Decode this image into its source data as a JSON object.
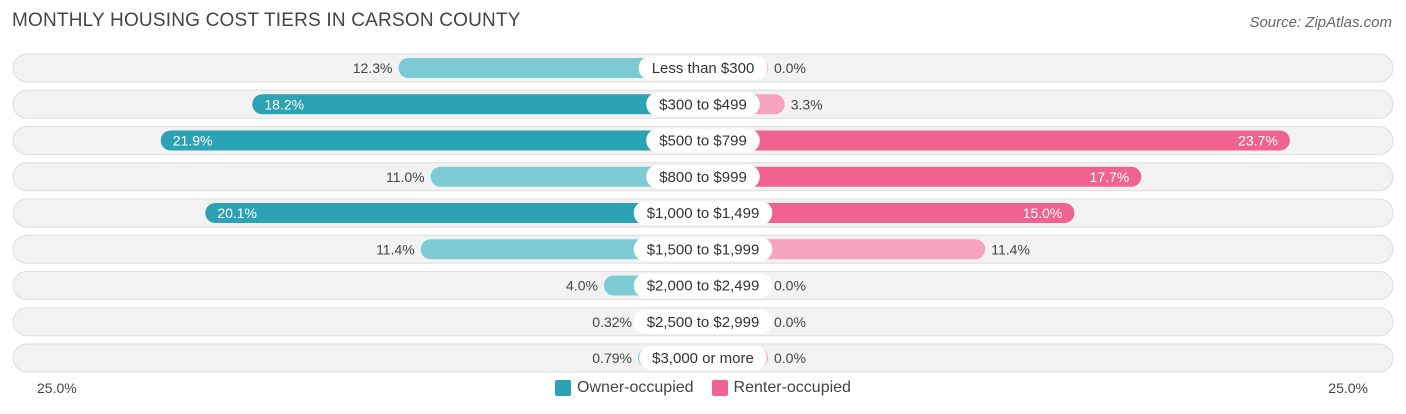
{
  "chart_data": {
    "type": "bar",
    "orientation": "horizontal-diverging",
    "title": "MONTHLY HOUSING COST TIERS IN CARSON COUNTY",
    "source": "Source: ZipAtlas.com",
    "categories": [
      "Less than $300",
      "$300 to $499",
      "$500 to $799",
      "$800 to $999",
      "$1,000 to $1,499",
      "$1,500 to $1,999",
      "$2,000 to $2,499",
      "$2,500 to $2,999",
      "$3,000 or more"
    ],
    "series": [
      {
        "name": "Owner-occupied",
        "values": [
          12.3,
          18.2,
          21.9,
          11.0,
          20.1,
          11.4,
          4.0,
          0.32,
          0.79
        ],
        "labels": [
          "12.3%",
          "18.2%",
          "21.9%",
          "11.0%",
          "20.1%",
          "11.4%",
          "4.0%",
          "0.32%",
          "0.79%"
        ]
      },
      {
        "name": "Renter-occupied",
        "values": [
          0.0,
          3.3,
          23.7,
          17.7,
          15.0,
          11.4,
          0.0,
          0.0,
          0.0
        ],
        "labels": [
          "0.0%",
          "3.3%",
          "23.7%",
          "17.7%",
          "15.0%",
          "11.4%",
          "0.0%",
          "0.0%",
          "0.0%"
        ]
      }
    ],
    "xlim": [
      -25,
      25
    ],
    "axis_labels": {
      "left": "25.0%",
      "right": "25.0%"
    },
    "legend_position": "bottom-center"
  },
  "colors": {
    "owner_strong": "#2ba3b4",
    "owner_light": "#7ccad4",
    "renter_strong": "#f0628f",
    "renter_light": "#f6a3bd",
    "row_bg": "#f2f2f2",
    "row_border": "#dedede"
  }
}
